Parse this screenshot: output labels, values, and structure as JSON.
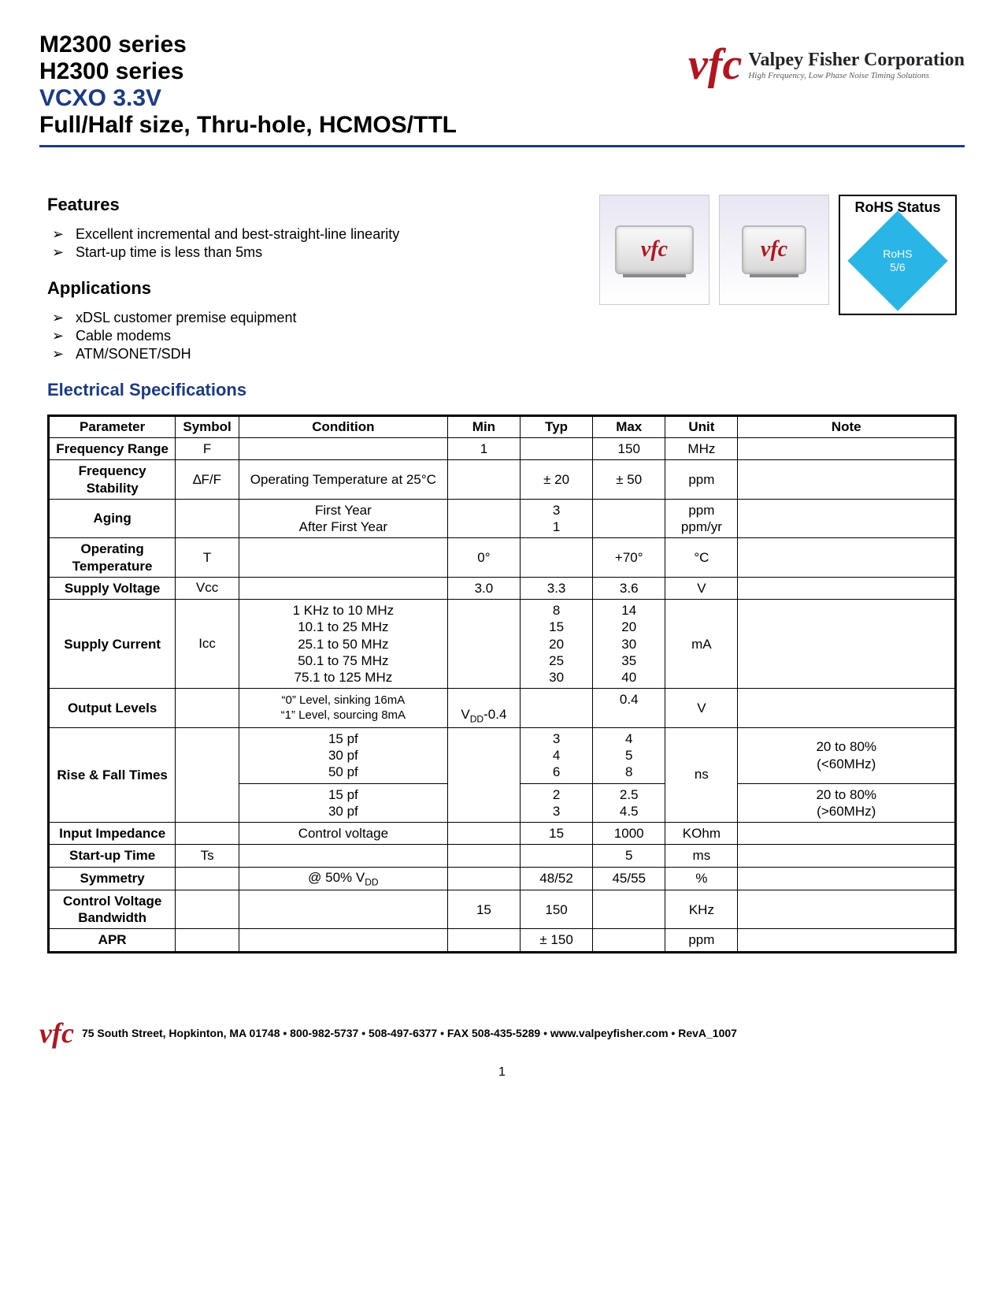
{
  "header": {
    "line1": "M2300 series",
    "line2": "H2300 series",
    "line3": "VCXO 3.3V",
    "line4": "Full/Half size, Thru-hole, HCMOS/TTL",
    "line3_color": "#1a3a8a",
    "rule_color": "#1a3a8a"
  },
  "logo": {
    "mark": "vfc",
    "company": "Valpey Fisher Corporation",
    "tagline": "High Frequency, Low Phase Noise Timing Solutions",
    "mark_color": "#b4141e"
  },
  "features": {
    "heading": "Features",
    "items": [
      "Excellent incremental and best-straight-line linearity",
      "Start-up time is less than 5ms"
    ]
  },
  "applications": {
    "heading": "Applications",
    "items": [
      "xDSL customer premise equipment",
      "Cable modems",
      "ATM/SONET/SDH"
    ]
  },
  "rohs": {
    "title": "RoHS Status",
    "badge_line1": "RoHS",
    "badge_line2": "5/6",
    "badge_color": "#29b6e6"
  },
  "spec": {
    "heading": "Electrical Specifications",
    "heading_color": "#1a3a8a",
    "columns": [
      "Parameter",
      "Symbol",
      "Condition",
      "Min",
      "Typ",
      "Max",
      "Unit",
      "Note"
    ],
    "col_widths_pct": [
      14,
      7,
      23,
      8,
      8,
      8,
      8,
      24
    ],
    "rows": [
      {
        "param": "Frequency Range",
        "symbol": "F",
        "cond": "",
        "min": "1",
        "typ": "",
        "max": "150",
        "unit": "MHz",
        "note": ""
      },
      {
        "param": "Frequency Stability",
        "symbol": "∆F/F",
        "cond": "Operating Temperature at 25°C",
        "min": "",
        "typ": "± 20",
        "max": "± 50",
        "unit": "ppm",
        "note": ""
      },
      {
        "param": "Aging",
        "symbol": "",
        "cond": "First Year\nAfter First Year",
        "min": "",
        "typ": "3\n1",
        "max": "",
        "unit": "ppm\nppm/yr",
        "note": ""
      },
      {
        "param": "Operating Temperature",
        "symbol": "T",
        "cond": "",
        "min": "0°",
        "typ": "",
        "max": "+70°",
        "unit": "°C",
        "note": ""
      },
      {
        "param": "Supply Voltage",
        "symbol": "Vcc",
        "cond": "",
        "min": "3.0",
        "typ": "3.3",
        "max": "3.6",
        "unit": "V",
        "note": ""
      },
      {
        "param": "Supply Current",
        "symbol": "Icc",
        "cond": "1 KHz to 10 MHz\n10.1 to 25 MHz\n25.1 to 50 MHz\n50.1 to 75 MHz\n75.1 to 125 MHz",
        "min": "",
        "typ": "8\n15\n20\n25\n30",
        "max": "14\n20\n30\n35\n40",
        "unit": "mA",
        "note": ""
      },
      {
        "param": "Output Levels",
        "symbol": "",
        "cond": "“0” Level, sinking 16mA\n“1” Level, sourcing 8mA",
        "cond_small": true,
        "min": "\nVDD-0.4",
        "min_sub": true,
        "typ": "",
        "max": "0.4\n",
        "unit": "V",
        "note": ""
      },
      {
        "param": "Input Impedance",
        "symbol": "",
        "cond": "Control voltage",
        "min": "",
        "typ": "15",
        "max": "1000",
        "unit": "KOhm",
        "note": ""
      },
      {
        "param": "Start-up Time",
        "symbol": "Ts",
        "cond": "",
        "min": "",
        "typ": "",
        "max": "5",
        "unit": "ms",
        "note": ""
      },
      {
        "param": "Symmetry",
        "symbol": "",
        "cond": "@ 50% VDD",
        "cond_sub": true,
        "min": "",
        "typ": "48/52",
        "max": "45/55",
        "unit": "%",
        "note": ""
      },
      {
        "param": "Control Voltage Bandwidth",
        "symbol": "",
        "cond": "",
        "min": "15",
        "typ": "150",
        "max": "",
        "unit": "KHz",
        "note": ""
      },
      {
        "param": "APR",
        "symbol": "",
        "cond": "",
        "min": "",
        "typ": "± 150",
        "max": "",
        "unit": "ppm",
        "note": ""
      }
    ],
    "rise_fall": {
      "param": "Rise & Fall Times",
      "unit": "ns",
      "group1": {
        "cond": "15 pf\n30 pf\n50 pf",
        "typ": "3\n4\n6",
        "max": "4\n5\n8",
        "note": "20 to 80%\n(<60MHz)"
      },
      "group2": {
        "cond": "15 pf\n30 pf",
        "typ": "2\n3",
        "max": "2.5\n4.5",
        "note": "20 to 80%\n(>60MHz)"
      }
    }
  },
  "footer": {
    "text": "75 South Street, Hopkinton, MA 01748  •  800-982-5737 •  508-497-6377 • FAX 508-435-5289  •  www.valpeyfisher.com •  RevA_1007",
    "page_number": "1"
  }
}
